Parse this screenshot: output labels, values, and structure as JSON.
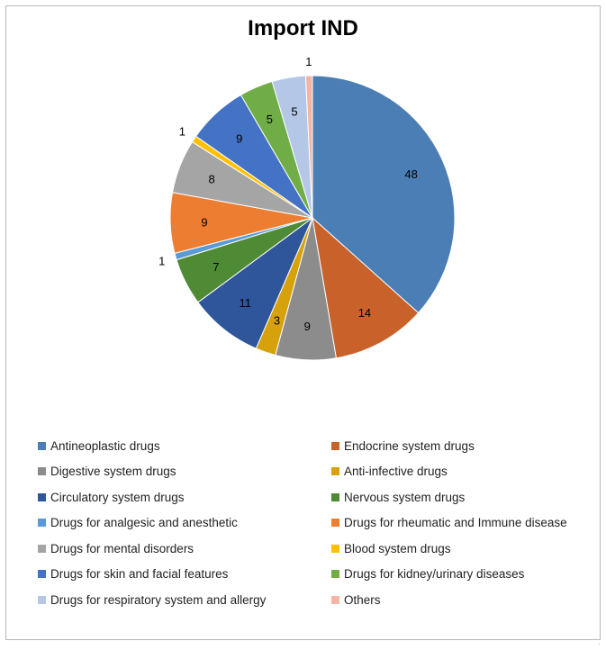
{
  "chart_data": {
    "type": "pie",
    "title": "Import IND",
    "categories": [
      "Antineoplastic drugs",
      "Endocrine system drugs",
      "Digestive system drugs",
      "Anti-infective drugs",
      "Circulatory system drugs",
      "Nervous system drugs",
      "Drugs for analgesic and anesthetic",
      "Drugs for rheumatic and Immune disease",
      "Drugs for mental disorders",
      "Blood system drugs",
      "Drugs for skin and facial features",
      "Drugs for kidney/urinary diseases",
      "Drugs for respiratory system and allergy",
      "Others"
    ],
    "values": [
      48,
      14,
      9,
      3,
      11,
      7,
      1,
      9,
      8,
      1,
      9,
      5,
      5,
      1
    ],
    "colors": [
      "#4a7eb5",
      "#c8622a",
      "#8c8c8c",
      "#d6a10a",
      "#2f559a",
      "#4f8a35",
      "#5b9bd5",
      "#ed7d31",
      "#a5a5a5",
      "#ffc000",
      "#4472c4",
      "#70ad47",
      "#b4c7e7",
      "#f4b4a4"
    ],
    "start_angle": "12 o'clock",
    "direction": "clockwise",
    "data_labels": true,
    "legend": "bottom, two columns"
  }
}
